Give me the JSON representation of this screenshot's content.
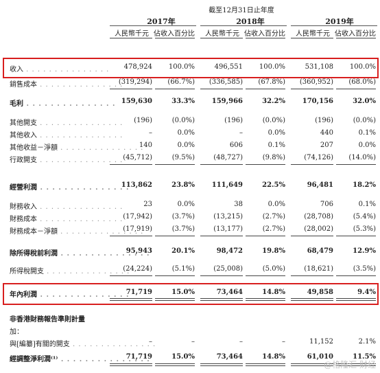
{
  "header": {
    "period": "截至12月31日止年度",
    "years": [
      "2017年",
      "2018年",
      "2019年"
    ],
    "col_rmb": "人民幣千元",
    "col_pct": "佔收入百分比"
  },
  "rows": [
    {
      "label": "收入",
      "vals": [
        "478,924",
        "100.0%",
        "496,551",
        "100.0%",
        "531,108",
        "100.0%"
      ]
    },
    {
      "label": "銷售成本",
      "vals": [
        "(319,294)",
        "(66.7%)",
        "(336,585)",
        "(67.8%)",
        "(360,952)",
        "(68.0%)"
      ]
    },
    {
      "label": "毛利",
      "vals": [
        "159,630",
        "33.3%",
        "159,966",
        "32.2%",
        "170,156",
        "32.0%"
      ]
    },
    {
      "label": "其他開支",
      "vals": [
        "(196)",
        "(0.0%)",
        "(196)",
        "(0.0%)",
        "(196)",
        "(0.0%)"
      ]
    },
    {
      "label": "其他收入",
      "vals": [
        "–",
        "0.0%",
        "–",
        "0.0%",
        "440",
        "0.1%"
      ]
    },
    {
      "label": "其他收益－淨額",
      "vals": [
        "140",
        "0.0%",
        "606",
        "0.1%",
        "207",
        "0.0%"
      ]
    },
    {
      "label": "行政開支",
      "vals": [
        "(45,712)",
        "(9.5%)",
        "(48,727)",
        "(9.8%)",
        "(74,126)",
        "(14.0%)"
      ]
    },
    {
      "label": "經營利潤",
      "vals": [
        "113,862",
        "23.8%",
        "111,649",
        "22.5%",
        "96,481",
        "18.2%"
      ]
    },
    {
      "label": "財務收入",
      "vals": [
        "23",
        "0.0%",
        "38",
        "0.0%",
        "706",
        "0.1%"
      ]
    },
    {
      "label": "財務成本",
      "vals": [
        "(17,942)",
        "(3.7%)",
        "(13,215)",
        "(2.7%)",
        "(28,708)",
        "(5.4%)"
      ]
    },
    {
      "label": "財務成本－淨額",
      "vals": [
        "(17,919)",
        "(3.7%)",
        "(13,177)",
        "(2.7%)",
        "(28,002)",
        "(5.3%)"
      ]
    },
    {
      "label": "除所得稅前利潤",
      "vals": [
        "95,943",
        "20.1%",
        "98,472",
        "19.8%",
        "68,479",
        "12.9%"
      ]
    },
    {
      "label": "所得稅開支",
      "vals": [
        "(24,224)",
        "(5.1%)",
        "(25,008)",
        "(5.0%)",
        "(18,621)",
        "(3.5%)"
      ]
    },
    {
      "label": "年內利潤",
      "vals": [
        "71,719",
        "15.0%",
        "73,464",
        "14.8%",
        "49,858",
        "9.4%"
      ]
    },
    {
      "label": "與[編纂]有關的開支",
      "vals": [
        "–",
        "–",
        "–",
        "–",
        "11,152",
        "2.1%"
      ]
    },
    {
      "label": "經調整淨利潤⁽¹⁾",
      "vals": [
        "71,719",
        "15.0%",
        "73,464",
        "14.8%",
        "61,010",
        "11.5%"
      ]
    }
  ],
  "section": {
    "non_hkfrs": "非香港財務報告準則計量",
    "add": "加："
  },
  "watermark": "@格隆汇 财经"
}
